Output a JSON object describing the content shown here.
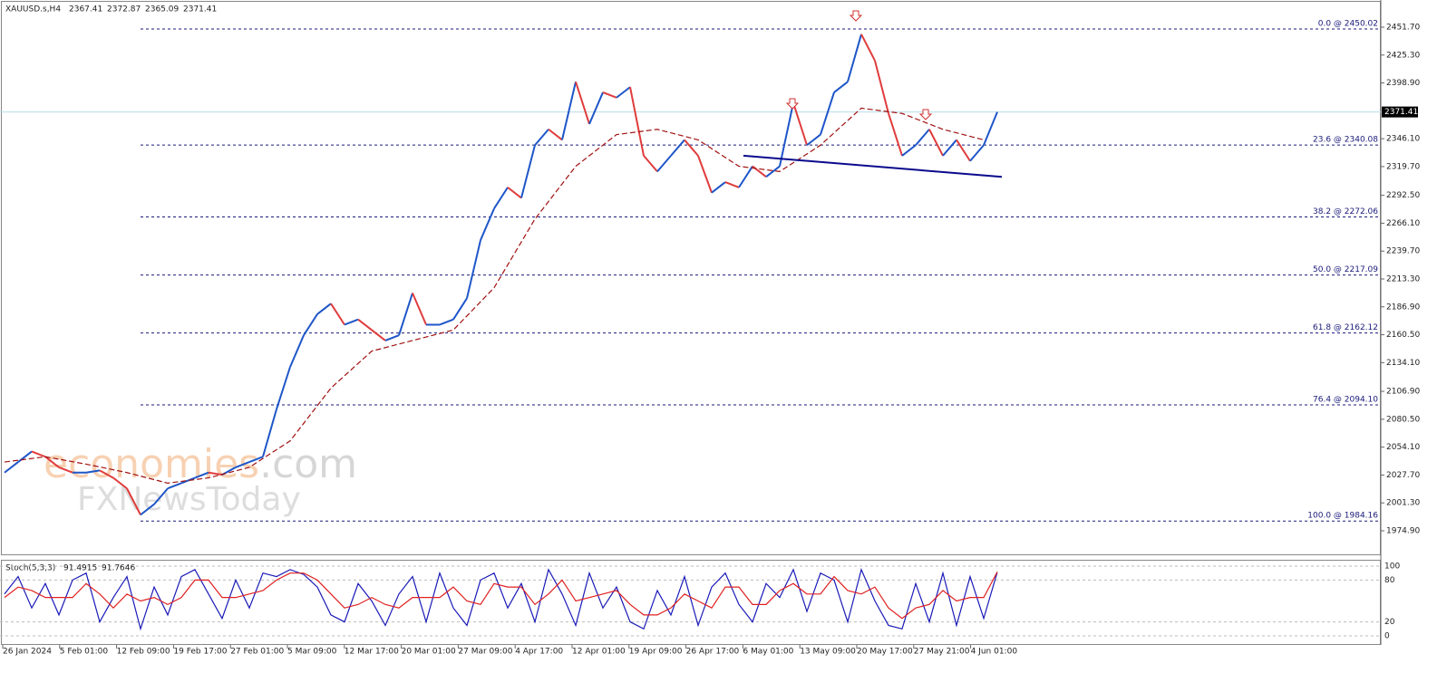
{
  "chart_data": [
    {
      "type": "line",
      "symbol": "XAUUSD.s,H4",
      "quote": [
        2367.41,
        2372.87,
        2365.09,
        2371.41
      ],
      "ylim": [
        1952.6,
        2475.7
      ],
      "yticks": [
        {
          "value": 2451.7,
          "label": "2451.70"
        },
        {
          "value": 2425.3,
          "label": "2425.30"
        },
        {
          "value": 2398.9,
          "label": "2398.90"
        },
        {
          "value": 2346.1,
          "label": "2346.10"
        },
        {
          "value": 2319.7,
          "label": "2319.70"
        },
        {
          "value": 2292.5,
          "label": "2292.50"
        },
        {
          "value": 2266.1,
          "label": "2266.10"
        },
        {
          "value": 2239.7,
          "label": "2239.70"
        },
        {
          "value": 2213.3,
          "label": "2213.30"
        },
        {
          "value": 2186.9,
          "label": "2186.90"
        },
        {
          "value": 2160.5,
          "label": "2160.50"
        },
        {
          "value": 2134.1,
          "label": "2134.10"
        },
        {
          "value": 2106.9,
          "label": "2106.90"
        },
        {
          "value": 2080.5,
          "label": "2080.50"
        },
        {
          "value": 2054.1,
          "label": "2054.10"
        },
        {
          "value": 2027.7,
          "label": "2027.70"
        },
        {
          "value": 2001.3,
          "label": "2001.30"
        },
        {
          "value": 1974.9,
          "label": "1974.90"
        }
      ],
      "last_price": 2371.41,
      "x_labels": [
        "26 Jan 2024",
        "5 Feb 01:00",
        "12 Feb 09:00",
        "19 Feb 17:00",
        "27 Feb 01:00",
        "5 Mar 09:00",
        "12 Mar 17:00",
        "20 Mar 01:00",
        "27 Mar 09:00",
        "4 Apr 17:00",
        "12 Apr 01:00",
        "19 Apr 09:00",
        "26 Apr 17:00",
        "6 May 01:00",
        "13 May 09:00",
        "20 May 17:00",
        "27 May 21:00",
        "4 Jun 01:00"
      ],
      "series": [
        {
          "name": "price",
          "color": "#1e56c8",
          "down_color": "#e03c3c",
          "values": [
            2030,
            2040,
            2050,
            2045,
            2035,
            2030,
            2030,
            2032,
            2025,
            2015,
            1990,
            2000,
            2015,
            2020,
            2025,
            2030,
            2028,
            2035,
            2040,
            2045,
            2090,
            2130,
            2160,
            2180,
            2190,
            2170,
            2175,
            2165,
            2155,
            2160,
            2200,
            2170,
            2170,
            2175,
            2195,
            2250,
            2280,
            2300,
            2290,
            2340,
            2355,
            2345,
            2400,
            2360,
            2390,
            2385,
            2395,
            2330,
            2315,
            2330,
            2345,
            2330,
            2295,
            2305,
            2300,
            2320,
            2310,
            2320,
            2380,
            2340,
            2350,
            2390,
            2400,
            2445,
            2420,
            2370,
            2330,
            2340,
            2355,
            2330,
            2345,
            2325,
            2340,
            2371.41
          ]
        },
        {
          "name": "moving average",
          "color": "#a01010",
          "values": [
            2040,
            2045,
            2038,
            2030,
            2020,
            2025,
            2035,
            2060,
            2110,
            2145,
            2155,
            2165,
            2205,
            2270,
            2320,
            2350,
            2355,
            2345,
            2320,
            2315,
            2340,
            2375,
            2370,
            2355,
            2345
          ]
        }
      ],
      "trendline": {
        "color": "#0a0a8c",
        "values": [
          2330,
          2310
        ]
      },
      "fibonacci": [
        {
          "label": "0.0 @ 2450.02",
          "value": 2450.02
        },
        {
          "label": "23.6 @ 2340.08",
          "value": 2340.08
        },
        {
          "label": "38.2 @ 2272.06",
          "value": 2272.06
        },
        {
          "label": "50.0 @ 2217.09",
          "value": 2217.09
        },
        {
          "label": "61.8 @ 2162.12",
          "value": 2162.12
        },
        {
          "label": "76.4 @ 2094.10",
          "value": 2094.1
        },
        {
          "label": "100.0 @ 1984.16",
          "value": 1984.16
        }
      ],
      "watermark": [
        "economies",
        ".com",
        "FXNewsToday"
      ]
    },
    {
      "type": "line",
      "title": "Stoch(5,3,3)",
      "ylim": [
        -13,
        106.5
      ],
      "yticks": [
        100,
        80,
        20,
        0
      ],
      "series": [
        {
          "name": "main",
          "color": "#1a1ab8",
          "values": [
            60,
            85,
            40,
            75,
            30,
            80,
            90,
            20,
            55,
            85,
            10,
            70,
            30,
            85,
            95,
            60,
            25,
            80,
            40,
            90,
            85,
            95,
            88,
            70,
            30,
            20,
            75,
            50,
            15,
            60,
            85,
            20,
            90,
            40,
            15,
            80,
            90,
            40,
            75,
            20,
            95,
            60,
            15,
            90,
            40,
            70,
            20,
            10,
            65,
            30,
            85,
            15,
            70,
            90,
            45,
            20,
            75,
            55,
            95,
            35,
            90,
            80,
            20,
            95,
            50,
            15,
            10,
            75,
            20,
            90,
            15,
            85,
            25,
            91.4915
          ]
        },
        {
          "name": "signal",
          "color": "#e02020",
          "values": [
            55,
            70,
            65,
            55,
            55,
            55,
            75,
            60,
            40,
            60,
            50,
            55,
            45,
            55,
            80,
            80,
            55,
            55,
            60,
            65,
            80,
            90,
            90,
            80,
            60,
            40,
            45,
            55,
            45,
            40,
            55,
            55,
            55,
            70,
            50,
            45,
            75,
            70,
            70,
            45,
            60,
            80,
            50,
            55,
            60,
            65,
            45,
            30,
            30,
            40,
            60,
            50,
            40,
            70,
            70,
            45,
            45,
            65,
            75,
            60,
            60,
            85,
            65,
            60,
            70,
            40,
            25,
            40,
            45,
            65,
            50,
            55,
            55,
            91.7646
          ]
        }
      ]
    }
  ]
}
